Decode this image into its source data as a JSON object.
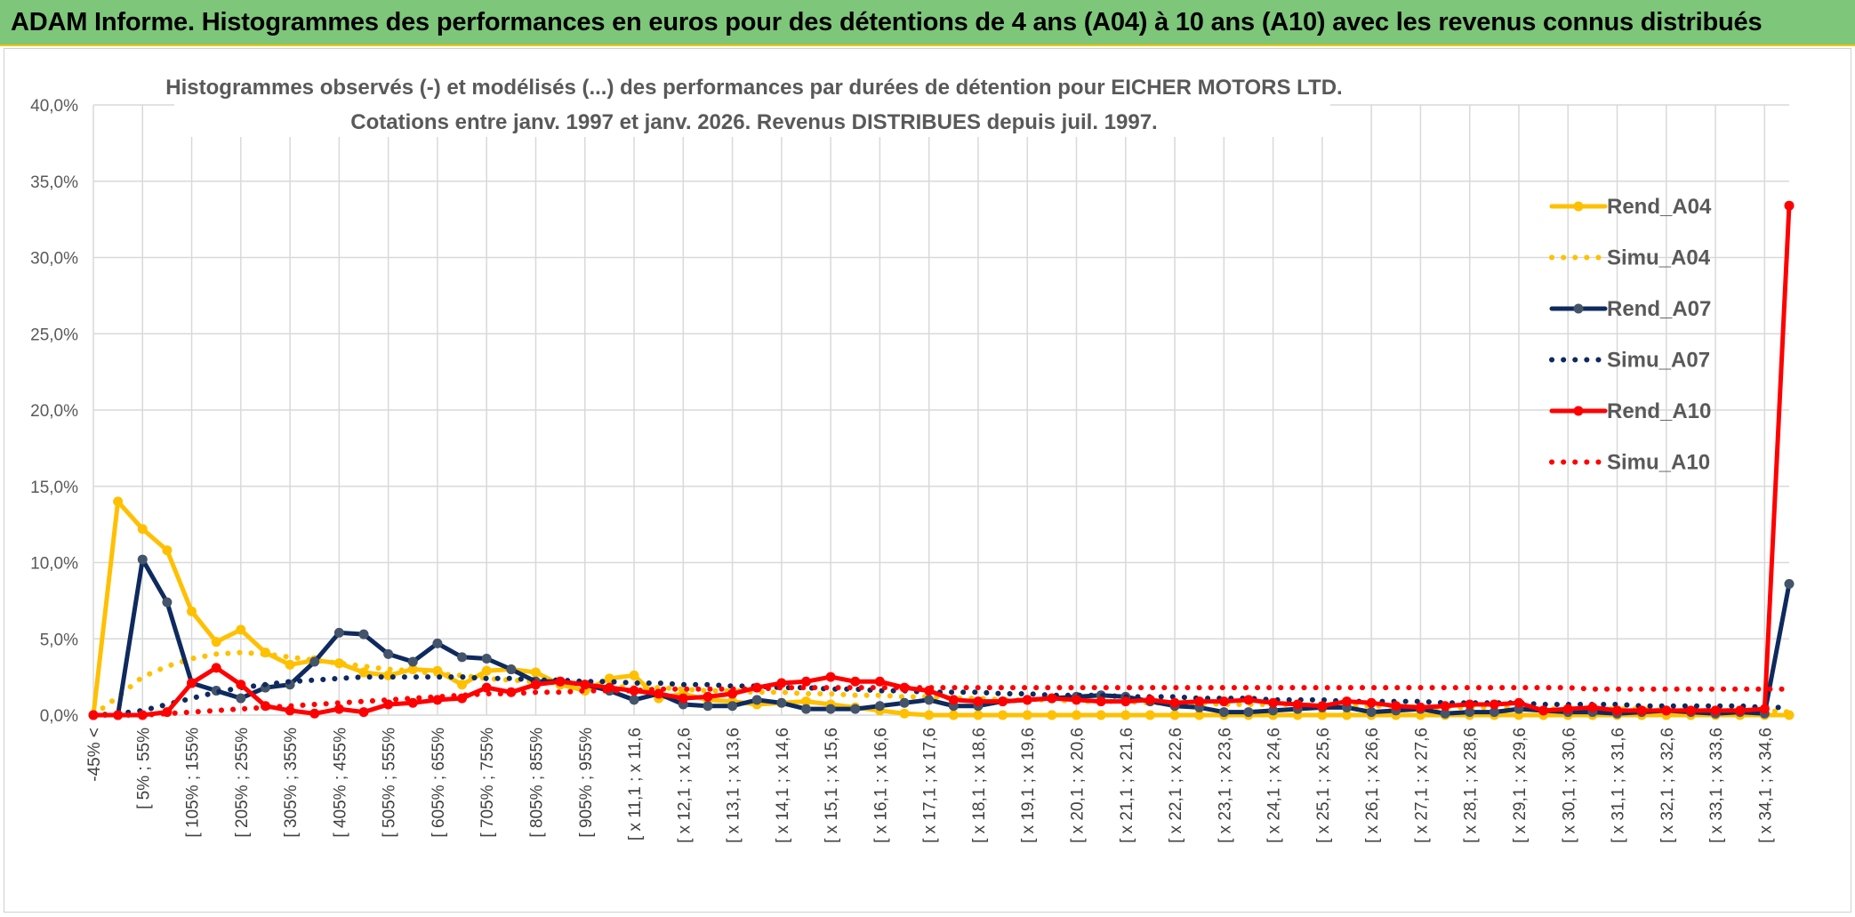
{
  "banner": {
    "title": "ADAM Informe. Histogrammes des performances en euros pour des détentions de 4 ans (A04) à 10 ans (A10) avec les revenus connus distribués"
  },
  "chart_data": {
    "type": "line",
    "title_line1": "Histogrammes observés (-) et modélisés (...) des performances par durées de détention pour EICHER MOTORS LTD.",
    "title_line2": "Cotations entre janv. 1997 et janv. 2026. Revenus DISTRIBUES depuis juil. 1997.",
    "ylim": [
      0,
      40
    ],
    "yticks": [
      "0,0%",
      "5,0%",
      "10,0%",
      "15,0%",
      "20,0%",
      "25,0%",
      "30,0%",
      "35,0%",
      "40,0%"
    ],
    "x_labels": [
      "-45% <",
      "[ 5% ; 55%",
      "[ 105% ; 155%",
      "[ 205% ; 255%",
      "[ 305% ; 355%",
      "[ 405% ; 455%",
      "[ 505% ; 555%",
      "[ 605% ; 655%",
      "[ 705% ; 755%",
      "[ 805% ; 855%",
      "[ 905% ; 955%",
      "[ x 11,1 ; x 11,6",
      "[ x 12,1 ; x 12,6",
      "[ x 13,1 ; x 13,6",
      "[ x 14,1 ; x 14,6",
      "[ x 15,1 ; x 15,6",
      "[ x 16,1 ; x 16,6",
      "[ x 17,1 ; x 17,6",
      "[ x 18,1 ; x 18,6",
      "[ x 19,1 ; x 19,6",
      "[ x 20,1 ; x 20,6",
      "[ x 21,1 ; x 21,6",
      "[ x 22,1 ; x 22,6",
      "[ x 23,1 ; x 23,6",
      "[ x 24,1 ; x 24,6",
      "[ x 25,1 ; x 25,6",
      "[ x 26,1 ; x 26,6",
      "[ x 27,1 ; x 27,6",
      "[ x 28,1 ; x 28,6",
      "[ x 29,1 ; x 29,6",
      "[ x 30,1 ; x 30,6",
      "[ x 31,1 ; x 31,6",
      "[ x 32,1 ; x 32,6",
      "[ x 33,1 ; x 33,6",
      "[ x 34,1 ; x 34,6"
    ],
    "legend_position": "right",
    "grid": true,
    "series": [
      {
        "name": "Rend_A04",
        "color": "#ffc000",
        "style": "solid",
        "markers": true,
        "values": [
          0,
          14.0,
          12.2,
          10.8,
          6.8,
          4.8,
          5.6,
          4.1,
          3.3,
          3.6,
          3.4,
          2.8,
          2.6,
          3.0,
          2.9,
          2.0,
          2.9,
          3.0,
          2.8,
          2.0,
          1.6,
          2.4,
          2.6,
          1.1,
          1.4,
          1.0,
          0.9,
          0.7,
          0.8,
          0.9,
          0.7,
          0.5,
          0.3,
          0.1,
          0,
          0,
          0,
          0,
          0,
          0,
          0,
          0,
          0,
          0,
          0,
          0,
          0,
          0,
          0,
          0,
          0,
          0,
          0,
          0,
          0,
          0,
          0,
          0,
          0,
          0,
          0,
          0,
          0,
          0,
          0,
          0,
          0,
          0,
          0,
          0
        ]
      },
      {
        "name": "Simu_A04",
        "color": "#ffc000",
        "style": "dotted",
        "markers": false,
        "values": [
          0,
          1.2,
          2.5,
          3.2,
          3.7,
          4.0,
          4.1,
          4.0,
          3.8,
          3.6,
          3.4,
          3.2,
          3.0,
          2.9,
          2.7,
          2.6,
          2.4,
          2.3,
          2.2,
          2.1,
          2.0,
          1.9,
          1.8,
          1.8,
          1.7,
          1.6,
          1.6,
          1.5,
          1.5,
          1.4,
          1.4,
          1.3,
          1.3,
          1.2,
          1.2,
          1.1,
          1.1,
          1.0,
          1.0,
          1.0,
          0.9,
          0.9,
          0.9,
          0.8,
          0.8,
          0.8,
          0.7,
          0.7,
          0.7,
          0.7,
          0.6,
          0.6,
          0.6,
          0.6,
          0.5,
          0.5,
          0.5,
          0.5,
          0.5,
          0.4,
          0.4,
          0.4,
          0.4,
          0.4,
          0.3,
          0.3,
          0.3,
          0.3,
          0.3,
          0.2
        ]
      },
      {
        "name": "Rend_A07",
        "color": "#0e2a5e",
        "style": "solid",
        "markers": true,
        "values": [
          0,
          0,
          10.2,
          7.4,
          2.1,
          1.6,
          1.1,
          1.8,
          2.0,
          3.5,
          5.4,
          5.3,
          4.0,
          3.5,
          4.7,
          3.8,
          3.7,
          3.0,
          2.2,
          2.2,
          2.0,
          1.6,
          1.0,
          1.4,
          0.7,
          0.6,
          0.6,
          1.0,
          0.8,
          0.4,
          0.4,
          0.4,
          0.6,
          0.8,
          1.0,
          0.6,
          0.6,
          0.9,
          1.0,
          1.1,
          1.2,
          1.3,
          1.2,
          0.9,
          0.6,
          0.5,
          0.2,
          0.2,
          0.3,
          0.4,
          0.5,
          0.5,
          0.2,
          0.3,
          0.4,
          0.1,
          0.2,
          0.2,
          0.4,
          0.3,
          0.2,
          0.2,
          0.1,
          0.2,
          0.3,
          0.2,
          0.1,
          0.2,
          0.1,
          8.6
        ]
      },
      {
        "name": "Simu_A07",
        "color": "#0e2a5e",
        "style": "dotted",
        "markers": false,
        "values": [
          0,
          0.1,
          0.3,
          0.7,
          1.1,
          1.5,
          1.8,
          2.0,
          2.2,
          2.3,
          2.4,
          2.5,
          2.5,
          2.5,
          2.5,
          2.5,
          2.4,
          2.4,
          2.3,
          2.3,
          2.2,
          2.2,
          2.1,
          2.1,
          2.0,
          2.0,
          1.9,
          1.9,
          1.8,
          1.8,
          1.7,
          1.7,
          1.6,
          1.6,
          1.5,
          1.5,
          1.5,
          1.4,
          1.4,
          1.3,
          1.3,
          1.3,
          1.2,
          1.2,
          1.2,
          1.1,
          1.1,
          1.1,
          1.0,
          1.0,
          1.0,
          0.9,
          0.9,
          0.9,
          0.9,
          0.8,
          0.8,
          0.8,
          0.8,
          0.7,
          0.7,
          0.7,
          0.7,
          0.6,
          0.6,
          0.6,
          0.6,
          0.6,
          0.5,
          0.5
        ]
      },
      {
        "name": "Rend_A10",
        "color": "#ff0000",
        "style": "solid",
        "markers": true,
        "values": [
          0,
          0,
          0,
          0.2,
          2.1,
          3.1,
          2.0,
          0.6,
          0.3,
          0.1,
          0.4,
          0.2,
          0.7,
          0.8,
          1.0,
          1.1,
          1.8,
          1.5,
          2.0,
          2.2,
          2.0,
          1.8,
          1.6,
          1.4,
          1.1,
          1.2,
          1.4,
          1.8,
          2.1,
          2.2,
          2.5,
          2.2,
          2.2,
          1.8,
          1.6,
          1.0,
          0.9,
          0.9,
          1.0,
          1.1,
          1.0,
          0.9,
          0.9,
          1.0,
          0.8,
          0.9,
          0.9,
          1.0,
          0.8,
          0.7,
          0.6,
          0.9,
          0.8,
          0.6,
          0.5,
          0.6,
          0.7,
          0.7,
          0.8,
          0.3,
          0.4,
          0.5,
          0.3,
          0.3,
          0.3,
          0.3,
          0.3,
          0.3,
          0.4,
          33.4
        ]
      },
      {
        "name": "Simu_A10",
        "color": "#ff0000",
        "style": "dotted",
        "markers": false,
        "values": [
          0,
          0,
          0,
          0.1,
          0.2,
          0.3,
          0.4,
          0.5,
          0.6,
          0.7,
          0.8,
          0.9,
          1.0,
          1.1,
          1.2,
          1.3,
          1.4,
          1.4,
          1.5,
          1.5,
          1.6,
          1.6,
          1.6,
          1.7,
          1.7,
          1.7,
          1.7,
          1.7,
          1.8,
          1.8,
          1.8,
          1.8,
          1.8,
          1.8,
          1.8,
          1.8,
          1.8,
          1.8,
          1.8,
          1.8,
          1.8,
          1.8,
          1.8,
          1.8,
          1.8,
          1.8,
          1.8,
          1.8,
          1.8,
          1.8,
          1.8,
          1.8,
          1.8,
          1.8,
          1.8,
          1.8,
          1.8,
          1.8,
          1.8,
          1.8,
          1.8,
          1.7,
          1.7,
          1.7,
          1.7,
          1.7,
          1.7,
          1.7,
          1.7,
          1.7
        ]
      }
    ]
  }
}
